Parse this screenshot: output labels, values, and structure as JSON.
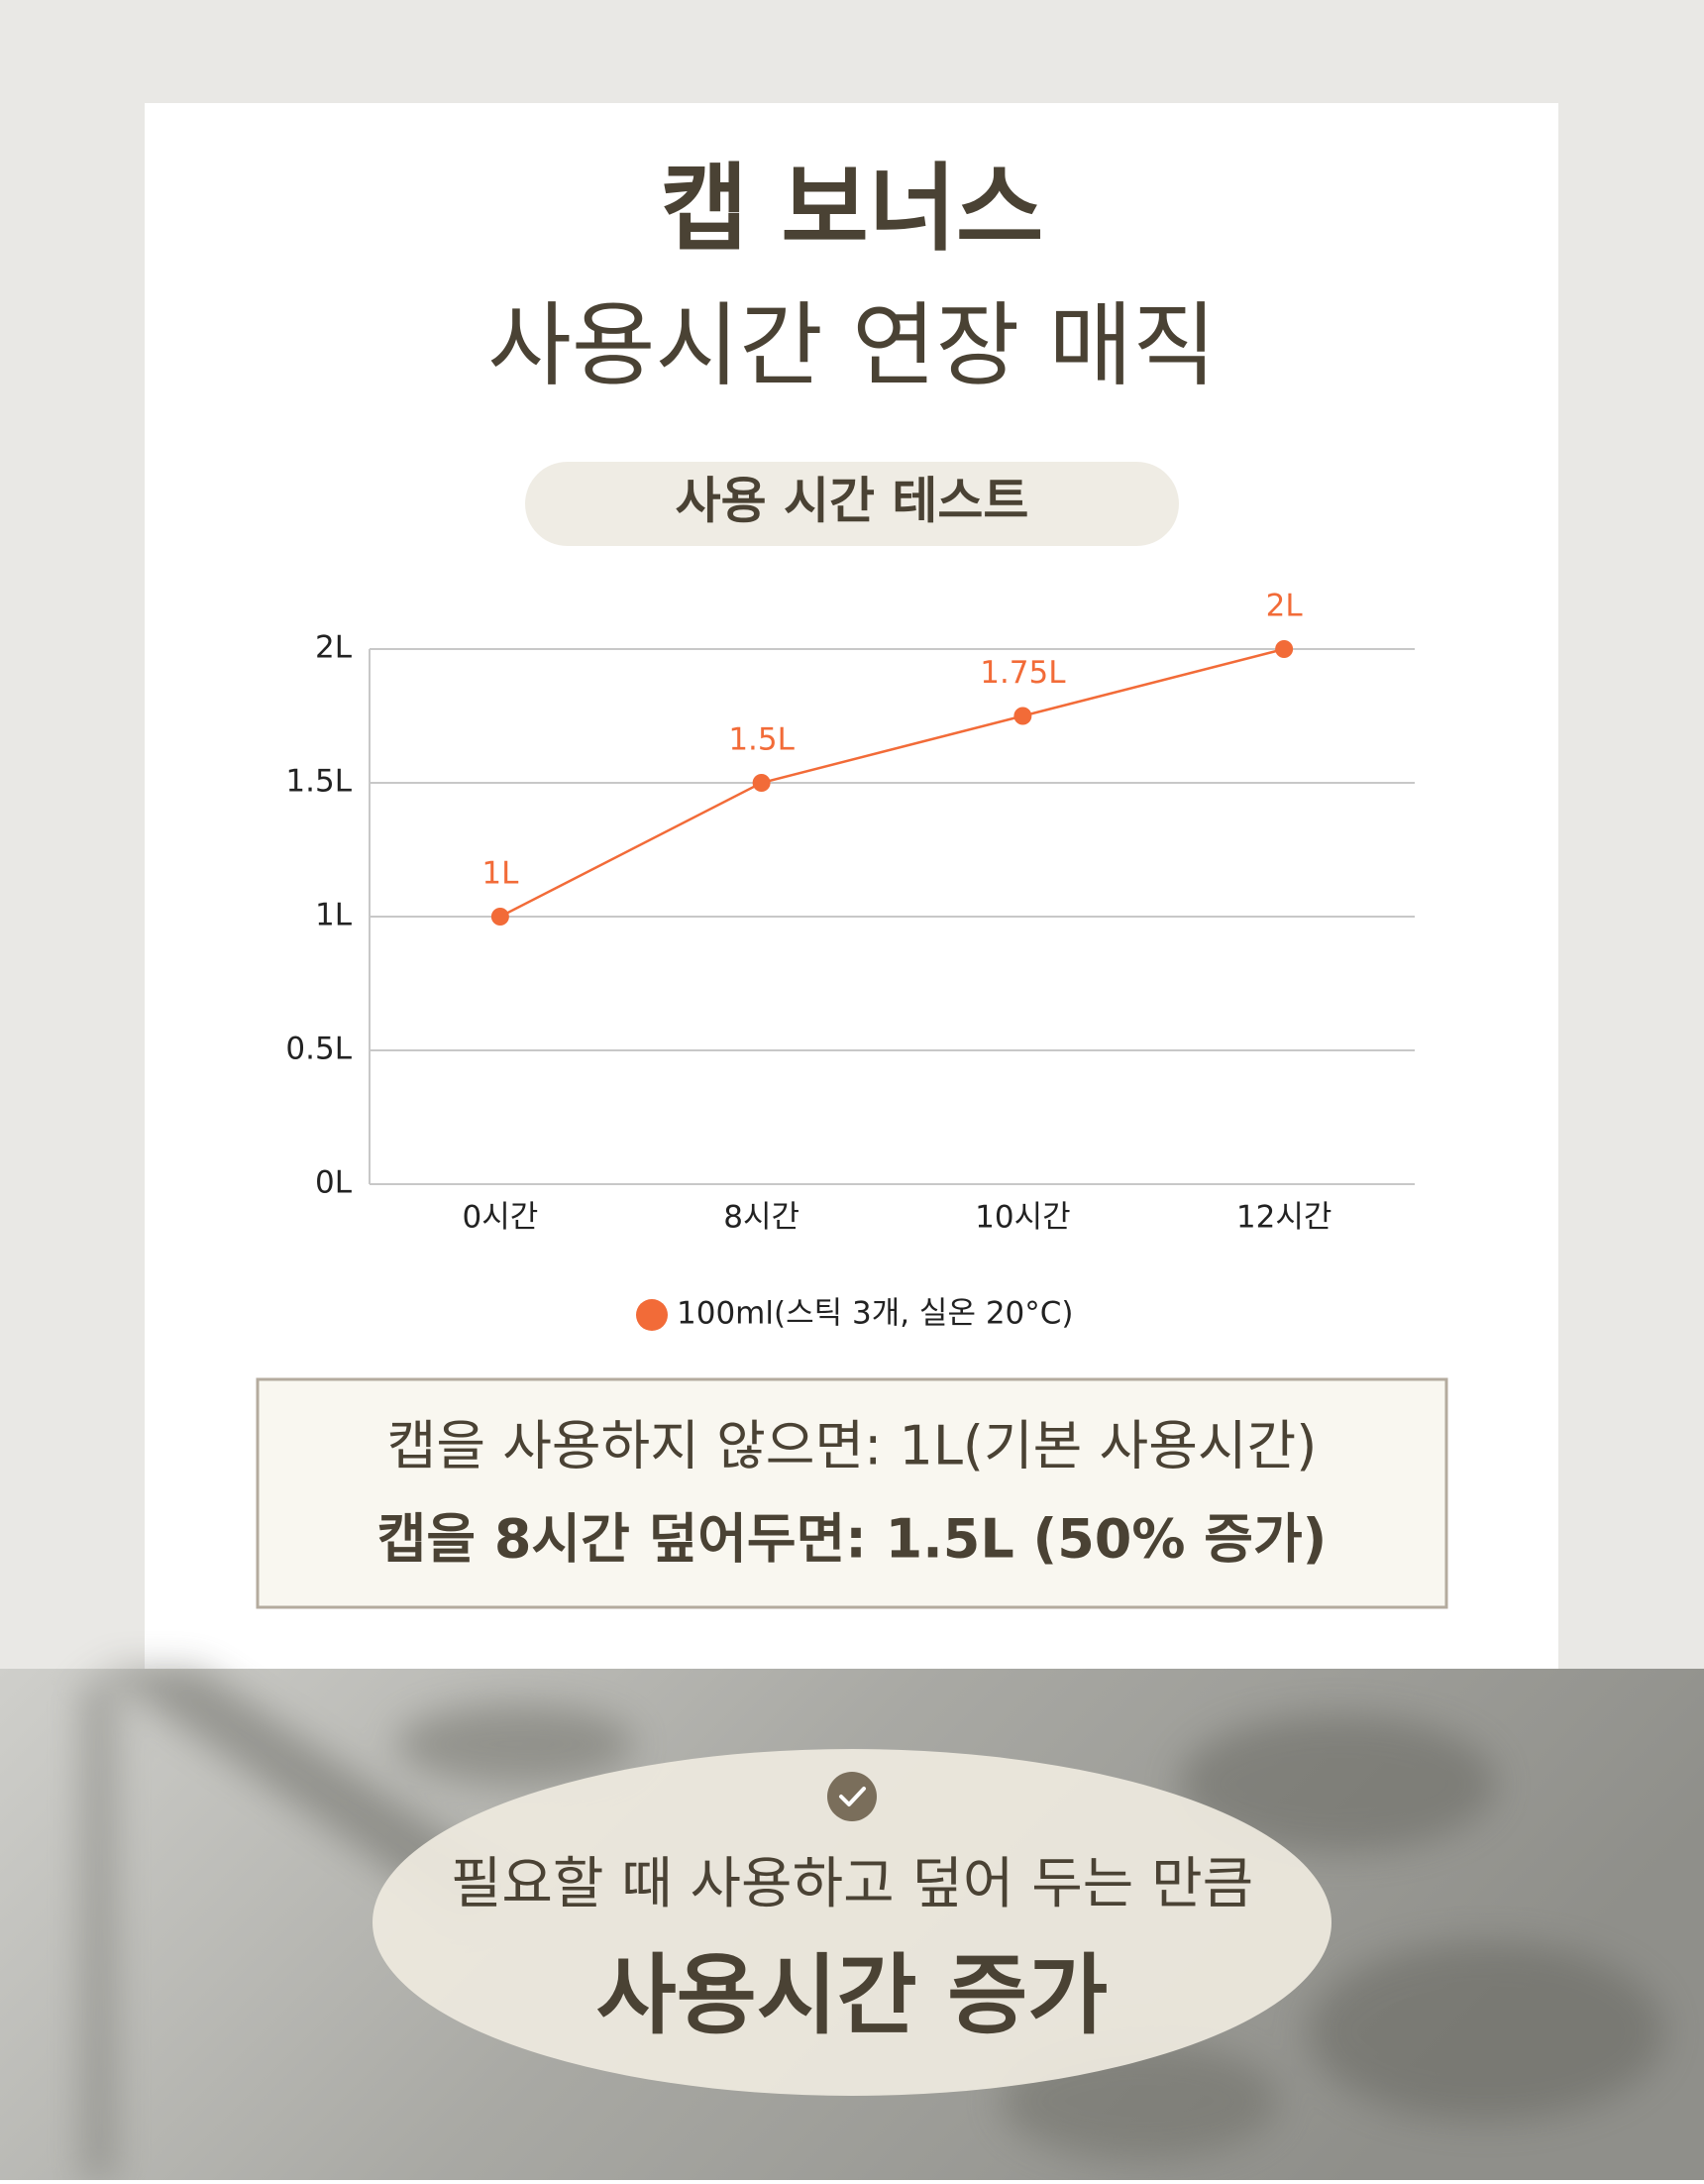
{
  "header": {
    "title_line1": "캡 보너스",
    "title_line2": "사용시간 연장 매직",
    "badge": "사용 시간 테스트"
  },
  "chart_data": {
    "type": "line",
    "categories": [
      "0시간",
      "8시간",
      "10시간",
      "12시간"
    ],
    "series": [
      {
        "name": "100ml(스틱 3개, 실온 20°C)",
        "color": "#f26b38",
        "values": [
          1,
          1.5,
          1.75,
          2
        ],
        "value_labels": [
          "1L",
          "1.5L",
          "1.75L",
          "2L"
        ]
      }
    ],
    "ylim": [
      0,
      2
    ],
    "yticks": [
      {
        "value": 0,
        "label": "0L"
      },
      {
        "value": 0.5,
        "label": "0.5L"
      },
      {
        "value": 1,
        "label": "1L"
      },
      {
        "value": 1.5,
        "label": "1.5L"
      },
      {
        "value": 2,
        "label": "2L"
      }
    ],
    "grid": true,
    "legend": "bottom"
  },
  "note": {
    "line1": "캡을 사용하지 않으면: 1L(기본 사용시간)",
    "line2": "캡을  8시간 덮어두면: 1.5L (50% 증가)"
  },
  "footer": {
    "line1": "필요할 때 사용하고 덮어 두는 만큼",
    "line2": "사용시간 증가"
  }
}
